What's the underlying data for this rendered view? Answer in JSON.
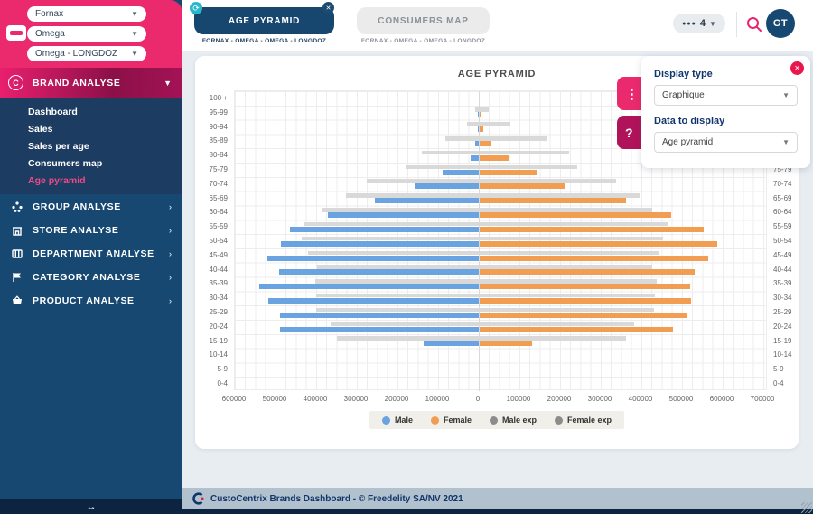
{
  "sidebar": {
    "filters": [
      {
        "label": "Fornax"
      },
      {
        "label": "Omega"
      },
      {
        "label": "Omega - LONGDOZ"
      }
    ],
    "brand_section": {
      "label": "BRAND ANALYSE",
      "items": [
        "Dashboard",
        "Sales",
        "Sales per age",
        "Consumers map",
        "Age pyramid"
      ],
      "active_item": "Age pyramid"
    },
    "sections": [
      {
        "label": "GROUP ANALYSE"
      },
      {
        "label": "STORE ANALYSE"
      },
      {
        "label": "DEPARTMENT ANALYSE"
      },
      {
        "label": "CATEGORY ANALYSE"
      },
      {
        "label": "PRODUCT ANALYSE"
      }
    ],
    "collapse_arrow": "↔"
  },
  "topbar": {
    "tabs": [
      {
        "label": "AGE PYRAMID",
        "subtitle": "FORNAX - OMEGA - OMEGA - LONGDOZ",
        "active": true
      },
      {
        "label": "CONSUMERS MAP",
        "subtitle": "FORNAX - OMEGA - OMEGA - LONGDOZ",
        "active": false
      }
    ],
    "counter": "4",
    "avatar": "GT"
  },
  "panel": {
    "display_type_label": "Display type",
    "display_type_value": "Graphique",
    "data_to_display_label": "Data to display",
    "data_to_display_value": "Age pyramid"
  },
  "footer": {
    "text": "CustoCentrix Brands Dashboard - © Freedelity SA/NV 2021"
  },
  "colors": {
    "pink": "#ea2a6d",
    "crimson": "#b0135a",
    "navy": "#174872",
    "dark_navy": "#0d2440",
    "male_blue": "#6aa4e0",
    "female_orange": "#f19e52",
    "exp_gray_bar": "#d9d9d9",
    "exp_gray_legend": "#8c8c8c",
    "footer_bg": "#b2c1ce"
  },
  "chart_data": {
    "type": "bar",
    "variant": "population-pyramid",
    "title": "AGE PYRAMID",
    "xlabel": "",
    "ylabel": "",
    "grid": true,
    "legend_position": "bottom",
    "categories": [
      "100 +",
      "95-99",
      "90-94",
      "85-89",
      "80-84",
      "75-79",
      "70-74",
      "65-69",
      "60-64",
      "55-59",
      "50-54",
      "45-49",
      "40-44",
      "35-39",
      "30-34",
      "25-29",
      "20-24",
      "15-19",
      "10-14",
      "5-9",
      "0-4"
    ],
    "x_tick_values": [
      -600000,
      -500000,
      -400000,
      -300000,
      -200000,
      -100000,
      0,
      100000,
      200000,
      300000,
      400000,
      500000,
      600000,
      700000
    ],
    "x_tick_labels": [
      "600000",
      "500000",
      "400000",
      "300000",
      "200000",
      "100000",
      "0",
      "100000",
      "200000",
      "300000",
      "400000",
      "500000",
      "600000",
      "700000"
    ],
    "xlim": [
      -600000,
      711000
    ],
    "series": [
      {
        "name": "Male",
        "side": "left",
        "color": "#6aa4e0",
        "values": [
          0,
          2000,
          3000,
          8000,
          20000,
          90000,
          157000,
          255000,
          372000,
          464000,
          487000,
          521000,
          492000,
          539000,
          517000,
          490000,
          488000,
          135000,
          0,
          0,
          0
        ]
      },
      {
        "name": "Female",
        "side": "right",
        "color": "#f19e52",
        "values": [
          0,
          3000,
          9000,
          28000,
          72000,
          142000,
          212000,
          361000,
          471000,
          550000,
          585000,
          562000,
          529000,
          518000,
          520000,
          509000,
          476000,
          129000,
          0,
          0,
          0
        ]
      },
      {
        "name": "Male exp",
        "side": "left",
        "color": "#d9d9d9",
        "legend_color": "#8c8c8c",
        "values": [
          0,
          8000,
          28000,
          82000,
          141000,
          180000,
          276000,
          326000,
          385000,
          431000,
          436000,
          420000,
          398000,
          403000,
          399000,
          399000,
          365000,
          350000,
          0,
          0,
          0
        ]
      },
      {
        "name": "Female exp",
        "side": "right",
        "color": "#d9d9d9",
        "legend_color": "#8c8c8c",
        "values": [
          0,
          23000,
          76000,
          164000,
          219000,
          240000,
          335000,
          395000,
          425000,
          463000,
          452000,
          439000,
          425000,
          436000,
          432000,
          428000,
          381000,
          360000,
          0,
          0,
          0
        ]
      }
    ]
  }
}
